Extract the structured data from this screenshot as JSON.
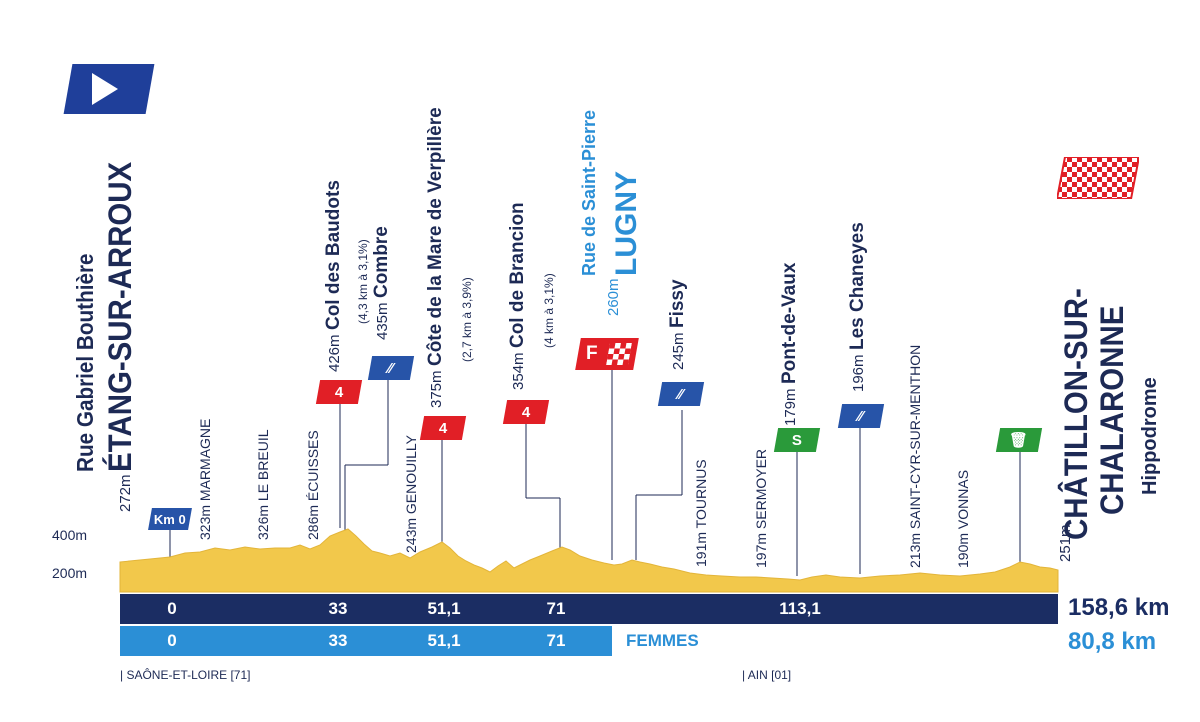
{
  "start": {
    "street": "Rue Gabriel Bouthière",
    "town": "ÉTANG-SUR-ARROUX",
    "alt": "272m",
    "km0": "Km 0"
  },
  "finish": {
    "town_line1": "CHÂTILLON-SUR-",
    "town_line2": "CHALARONNE",
    "place": "Hippodrome",
    "alt": "251m"
  },
  "sprint_f": {
    "street": "Rue de Saint-Pierre",
    "town": "LUGNY",
    "alt": "260m",
    "badge": "F"
  },
  "y_axis": {
    "label_400": "400m",
    "label_200": "200m"
  },
  "places": [
    {
      "alt": "323m",
      "name": "MARMAGNE"
    },
    {
      "alt": "326m",
      "name": "LE BREUIL"
    },
    {
      "alt": "286m",
      "name": "ÉCUISSES"
    },
    {
      "alt": "243m",
      "name": "GENOUILLY"
    },
    {
      "alt": "191m",
      "name": "TOURNUS"
    },
    {
      "alt": "197m",
      "name": "SERMOYER"
    },
    {
      "alt": "213m",
      "name": "SAINT-CYR-SUR-MENTHON"
    },
    {
      "alt": "190m",
      "name": "VONNAS"
    }
  ],
  "climbs": [
    {
      "alt": "426m",
      "name": "Col des Baudots",
      "detail": "(4,3 km à 3,1%)",
      "badge": "4"
    },
    {
      "alt": "375m",
      "name": "Côte de la Mare de Verpillère",
      "detail": "(2,7 km à 3,9%)",
      "badge": "4"
    },
    {
      "alt": "354m",
      "name": "Col de Brancion",
      "detail": "(4 km à 3,1%)",
      "badge": "4"
    }
  ],
  "feeds": [
    {
      "alt": "435m",
      "name": "Combre"
    },
    {
      "alt": "245m",
      "name": "Fissy"
    },
    {
      "alt": "196m",
      "name": "Les Chaneyes"
    }
  ],
  "sprint": {
    "alt": "179m",
    "name": "Pont-de-Vaux",
    "badge": "S"
  },
  "bar_men": {
    "marks": [
      "0",
      "33",
      "51,1",
      "71",
      "113,1"
    ],
    "total": "158,6 km",
    "color": "#1b2d63"
  },
  "bar_women": {
    "marks": [
      "0",
      "33",
      "51,1",
      "71"
    ],
    "label": "FEMMES",
    "total": "80,8 km",
    "color": "#2b8fd6"
  },
  "regions": {
    "left": "| SAÔNE-ET-LOIRE [71]",
    "right": "| AIN [01]"
  },
  "colors": {
    "navy": "#1d2a55",
    "profile": "#f2c84b",
    "climb_red": "#e11f26",
    "sprint_green": "#2a9a3a",
    "feed_blue": "#2754a8",
    "women_blue": "#2b8fd6"
  }
}
